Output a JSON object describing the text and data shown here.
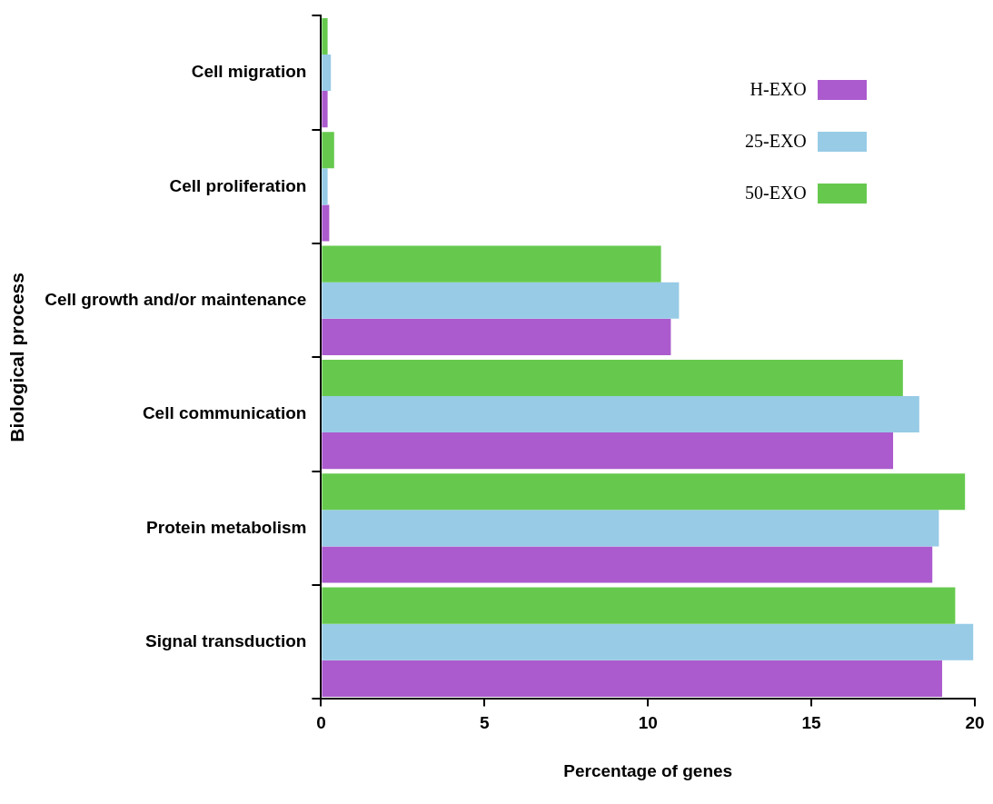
{
  "chart_data": {
    "type": "bar",
    "orientation": "horizontal",
    "xlabel": "Percentage of genes",
    "ylabel": "Biological process",
    "categories": [
      "Cell migration",
      "Cell proliferation",
      "Cell growth and/or maintenance",
      "Cell communication",
      "Protein metabolism",
      "Signal transduction"
    ],
    "series": [
      {
        "name": "H-EXO",
        "color": "#ab5bcd",
        "values": [
          0.2,
          0.25,
          10.7,
          17.5,
          18.7,
          19.0
        ]
      },
      {
        "name": "25-EXO",
        "color": "#97cbe6",
        "values": [
          0.3,
          0.2,
          10.95,
          18.3,
          18.9,
          19.95
        ]
      },
      {
        "name": "50-EXO",
        "color": "#66c94e",
        "values": [
          0.2,
          0.4,
          10.4,
          17.8,
          19.7,
          19.4
        ]
      }
    ],
    "xlim": [
      0,
      20
    ],
    "xticks": [
      0,
      5,
      10,
      15,
      20
    ],
    "grid": false,
    "legend": "top right"
  }
}
